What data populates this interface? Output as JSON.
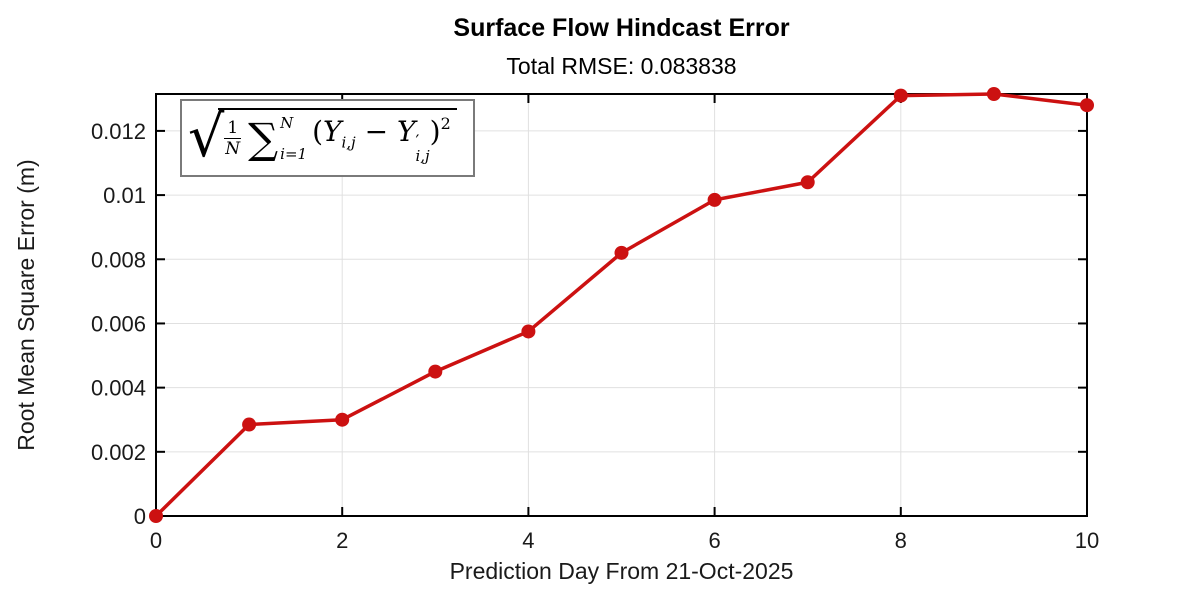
{
  "chart_data": {
    "type": "line",
    "title": "Surface Flow Hindcast Error",
    "subtitle": "Total RMSE: 0.083838",
    "xlabel": "Prediction Day From 21-Oct-2025",
    "ylabel": "Root Mean Square Error (m)",
    "series": [
      {
        "name": "RMSE",
        "x": [
          0,
          1,
          2,
          3,
          4,
          5,
          6,
          7,
          8,
          9,
          10
        ],
        "y": [
          0,
          0.00285,
          0.003,
          0.0045,
          0.00575,
          0.0082,
          0.00985,
          0.0104,
          0.0131,
          0.01315,
          0.0128
        ]
      }
    ],
    "xlim": [
      0,
      10
    ],
    "ylim": [
      0,
      0.01315
    ],
    "xticks": [
      0,
      2,
      4,
      6,
      8,
      10
    ],
    "xtick_labels": [
      "0",
      "2",
      "4",
      "6",
      "8",
      "10"
    ],
    "yticks": [
      0,
      0.002,
      0.004,
      0.006,
      0.008,
      0.01,
      0.012
    ],
    "ytick_labels": [
      "0",
      "0.002",
      "0.004",
      "0.006",
      "0.008",
      "0.01",
      "0.012"
    ],
    "grid": true,
    "legend": "none",
    "line_color": "#cc1111",
    "marker": "o",
    "marker_radius": 7,
    "line_width": 3.5,
    "grid_color": "#e0e0e0",
    "axis_color": "#000000",
    "tick_label_color": "#1a1a1a"
  },
  "formula": {
    "radical": "√",
    "frac_num": "1",
    "frac_den": "N",
    "sum_symbol": "∑",
    "sum_sup": "N",
    "sum_sub": "i=1",
    "open_paren": "(",
    "var1": "Y",
    "sub1": "i,j",
    "minus": " − ",
    "var2": "Y",
    "prime": "′",
    "sub2": "i,j",
    "close_paren": ")",
    "power": "2"
  }
}
